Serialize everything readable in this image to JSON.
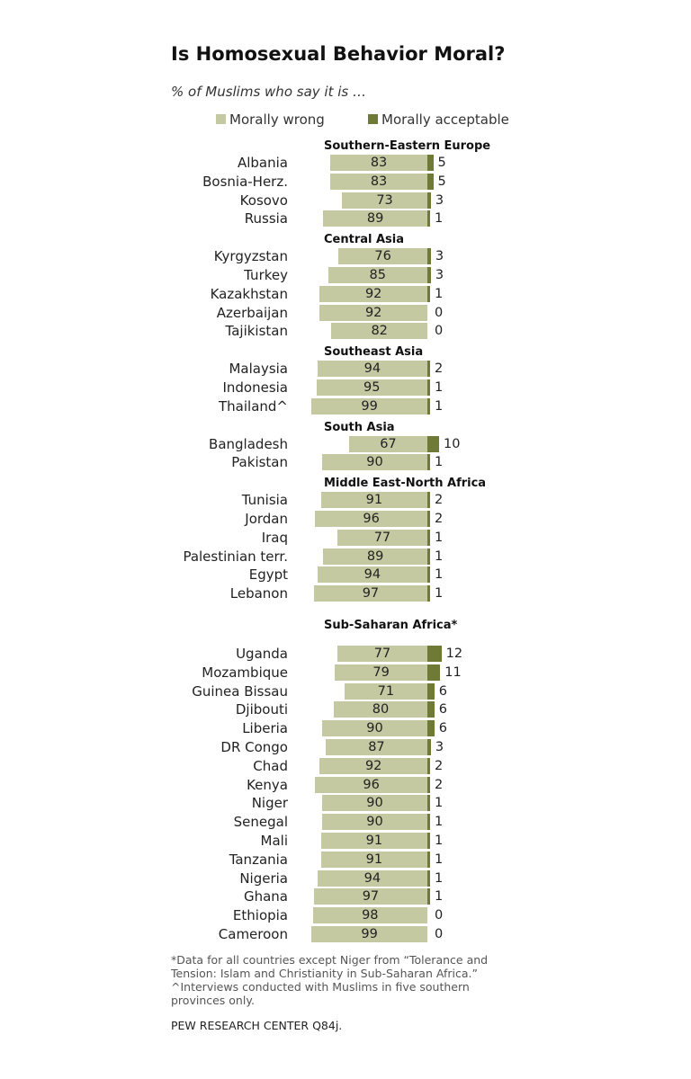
{
  "colors": {
    "morally_wrong": "#c4c9a2",
    "morally_acceptable": "#6e7a35"
  },
  "chart_data": {
    "type": "bar",
    "orientation": "horizontal",
    "stacking": "diverging",
    "title": "Is Homosexual Behavior Moral?",
    "subtitle": "% of Muslims who say it is …",
    "legend": {
      "position": "top",
      "entries": [
        "Morally wrong",
        "Morally acceptable"
      ]
    },
    "xlim": [
      0,
      100
    ],
    "grid": false,
    "groups": [
      {
        "name": "Southern-Eastern  Europe",
        "rows": [
          {
            "country": "Albania",
            "wrong": 83,
            "acceptable": 5
          },
          {
            "country": "Bosnia-Herz.",
            "wrong": 83,
            "acceptable": 5
          },
          {
            "country": "Kosovo",
            "wrong": 73,
            "acceptable": 3
          },
          {
            "country": "Russia",
            "wrong": 89,
            "acceptable": 1
          }
        ]
      },
      {
        "name": "Central Asia",
        "rows": [
          {
            "country": "Kyrgyzstan",
            "wrong": 76,
            "acceptable": 3
          },
          {
            "country": "Turkey",
            "wrong": 85,
            "acceptable": 3
          },
          {
            "country": "Kazakhstan",
            "wrong": 92,
            "acceptable": 1
          },
          {
            "country": "Azerbaijan",
            "wrong": 92,
            "acceptable": 0
          },
          {
            "country": "Tajikistan",
            "wrong": 82,
            "acceptable": 0
          }
        ]
      },
      {
        "name": "Southeast Asia",
        "rows": [
          {
            "country": "Malaysia",
            "wrong": 94,
            "acceptable": 2
          },
          {
            "country": "Indonesia",
            "wrong": 95,
            "acceptable": 1
          },
          {
            "country": "Thailand^",
            "wrong": 99,
            "acceptable": 1
          }
        ]
      },
      {
        "name": "South Asia",
        "rows": [
          {
            "country": "Bangladesh",
            "wrong": 67,
            "acceptable": 10
          },
          {
            "country": "Pakistan",
            "wrong": 90,
            "acceptable": 1
          }
        ]
      },
      {
        "name": "Middle East-North Africa",
        "rows": [
          {
            "country": "Tunisia",
            "wrong": 91,
            "acceptable": 2
          },
          {
            "country": "Jordan",
            "wrong": 96,
            "acceptable": 2
          },
          {
            "country": "Iraq",
            "wrong": 77,
            "acceptable": 1
          },
          {
            "country": "Palestinian terr.",
            "wrong": 89,
            "acceptable": 1
          },
          {
            "country": "Egypt",
            "wrong": 94,
            "acceptable": 1
          },
          {
            "country": "Lebanon",
            "wrong": 97,
            "acceptable": 1
          }
        ]
      },
      {
        "name": "Sub-Saharan  Africa*",
        "rows": [
          {
            "country": "Uganda",
            "wrong": 77,
            "acceptable": 12
          },
          {
            "country": "Mozambique",
            "wrong": 79,
            "acceptable": 11
          },
          {
            "country": "Guinea Bissau",
            "wrong": 71,
            "acceptable": 6
          },
          {
            "country": "Djibouti",
            "wrong": 80,
            "acceptable": 6
          },
          {
            "country": "Liberia",
            "wrong": 90,
            "acceptable": 6
          },
          {
            "country": "DR Congo",
            "wrong": 87,
            "acceptable": 3
          },
          {
            "country": "Chad",
            "wrong": 92,
            "acceptable": 2
          },
          {
            "country": "Kenya",
            "wrong": 96,
            "acceptable": 2
          },
          {
            "country": "Niger",
            "wrong": 90,
            "acceptable": 1
          },
          {
            "country": "Senegal",
            "wrong": 90,
            "acceptable": 1
          },
          {
            "country": "Mali",
            "wrong": 91,
            "acceptable": 1
          },
          {
            "country": "Tanzania",
            "wrong": 91,
            "acceptable": 1
          },
          {
            "country": "Nigeria",
            "wrong": 94,
            "acceptable": 1
          },
          {
            "country": "Ghana",
            "wrong": 97,
            "acceptable": 1
          },
          {
            "country": "Ethiopia",
            "wrong": 98,
            "acceptable": 0
          },
          {
            "country": "Cameroon",
            "wrong": 99,
            "acceptable": 0
          }
        ]
      }
    ],
    "footnotes": [
      "*Data for all countries except Niger from “Tolerance and Tension: Islam and Christianity in Sub-Saharan Africa.”",
      "^Interviews conducted with Muslims in five southern provinces only."
    ],
    "source": "PEW RESEARCH  CENTER  Q84j."
  }
}
